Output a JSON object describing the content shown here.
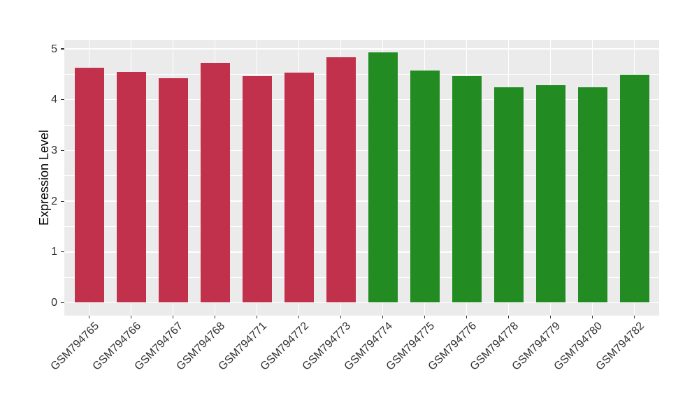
{
  "chart_data": {
    "type": "bar",
    "title": "",
    "xlabel": "",
    "ylabel": "Expression Level",
    "categories": [
      "GSM794765",
      "GSM794766",
      "GSM794767",
      "GSM794768",
      "GSM794771",
      "GSM794772",
      "GSM794773",
      "GSM794774",
      "GSM794775",
      "GSM794776",
      "GSM794778",
      "GSM794779",
      "GSM794780",
      "GSM794782"
    ],
    "values": [
      4.63,
      4.55,
      4.42,
      4.72,
      4.47,
      4.53,
      4.83,
      4.93,
      4.57,
      4.46,
      4.24,
      4.28,
      4.25,
      4.49
    ],
    "bar_groups": [
      "group1",
      "group1",
      "group1",
      "group1",
      "group1",
      "group1",
      "group1",
      "group2",
      "group2",
      "group2",
      "group2",
      "group2",
      "group2",
      "group2"
    ],
    "group_colors": {
      "group1": "#C2314B",
      "group2": "#228B22"
    },
    "yticks": [
      0,
      1,
      2,
      3,
      4,
      5
    ],
    "ylim": [
      -0.25,
      5.18
    ],
    "legend": "none",
    "grid": {
      "horizontal_major": true,
      "horizontal_minor": true,
      "vertical_major": true
    },
    "panel_background": "#EBEBEB",
    "gridline_color": "#FFFFFF",
    "tick_color": "#333333",
    "tick_label_color": "#303030",
    "axis_title_color": "#000000"
  }
}
